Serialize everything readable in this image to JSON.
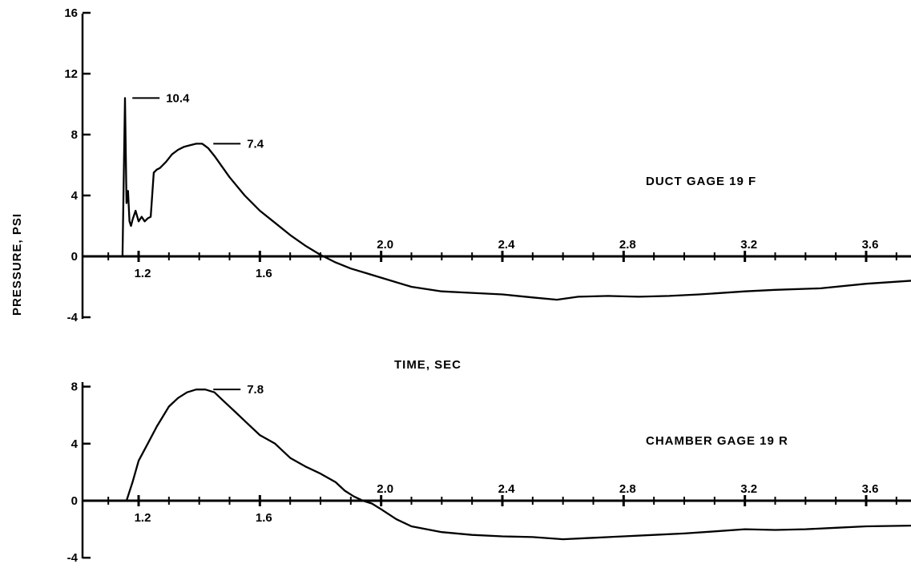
{
  "labels": {
    "ylabel": "PRESSURE, PSI",
    "xlabel": "TIME, SEC"
  },
  "chart_data": [
    {
      "type": "line",
      "panel": "top",
      "gage_label": "DUCT GAGE 19 F",
      "xlim": [
        1.0,
        3.75
      ],
      "ylim": [
        -4,
        16
      ],
      "x_ticks": [
        1.2,
        1.6,
        2.0,
        2.4,
        2.8,
        3.2,
        3.6
      ],
      "x_tick_labels": [
        "1.2",
        "1.6",
        "2.0",
        "2.4",
        "2.8",
        "3.2",
        "3.6"
      ],
      "y_ticks": [
        -4,
        0,
        4,
        8,
        12,
        16
      ],
      "y_tick_labels": [
        "-4",
        "0",
        "4",
        "8",
        "12",
        "16"
      ],
      "annotations": [
        {
          "text": "10.4",
          "x": 1.153,
          "y": 10.4
        },
        {
          "text": "7.4",
          "x": 1.42,
          "y": 7.4
        }
      ],
      "series": [
        {
          "x": [
            1.147,
            1.155,
            1.16,
            1.165,
            1.17,
            1.175,
            1.18,
            1.19,
            1.2,
            1.21,
            1.22,
            1.23,
            1.24,
            1.25,
            1.26,
            1.27,
            1.29,
            1.31,
            1.33,
            1.35,
            1.37,
            1.39,
            1.41,
            1.43,
            1.45,
            1.5,
            1.55,
            1.6,
            1.65,
            1.7,
            1.75,
            1.8,
            1.85,
            1.9,
            1.95,
            2.0,
            2.1,
            2.2,
            2.3,
            2.4,
            2.5,
            2.58,
            2.65,
            2.75,
            2.85,
            2.95,
            3.05,
            3.2,
            3.3,
            3.45,
            3.6,
            3.75
          ],
          "y": [
            0.0,
            10.4,
            3.5,
            4.3,
            2.3,
            2.0,
            2.4,
            3.0,
            2.3,
            2.6,
            2.3,
            2.5,
            2.6,
            5.5,
            5.7,
            5.8,
            6.2,
            6.7,
            7.0,
            7.2,
            7.3,
            7.4,
            7.4,
            7.1,
            6.6,
            5.2,
            4.0,
            3.0,
            2.2,
            1.4,
            0.7,
            0.1,
            -0.4,
            -0.8,
            -1.1,
            -1.4,
            -2.0,
            -2.3,
            -2.4,
            -2.5,
            -2.7,
            -2.85,
            -2.65,
            -2.6,
            -2.65,
            -2.6,
            -2.5,
            -2.3,
            -2.2,
            -2.1,
            -1.8,
            -1.6
          ]
        }
      ]
    },
    {
      "type": "line",
      "panel": "bottom",
      "gage_label": "CHAMBER GAGE 19 R",
      "xlim": [
        1.0,
        3.75
      ],
      "ylim": [
        -4,
        8
      ],
      "x_ticks": [
        1.2,
        1.6,
        2.0,
        2.4,
        2.8,
        3.2,
        3.6
      ],
      "x_tick_labels": [
        "1.2",
        "1.6",
        "2.0",
        "2.4",
        "2.8",
        "3.2",
        "3.6"
      ],
      "y_ticks": [
        -4,
        0,
        4,
        8
      ],
      "y_tick_labels": [
        "-4",
        "0",
        "4",
        "8"
      ],
      "annotations": [
        {
          "text": "7.8",
          "x": 1.42,
          "y": 7.8
        }
      ],
      "series": [
        {
          "x": [
            1.16,
            1.18,
            1.2,
            1.23,
            1.26,
            1.3,
            1.33,
            1.36,
            1.39,
            1.42,
            1.45,
            1.48,
            1.52,
            1.56,
            1.6,
            1.65,
            1.7,
            1.75,
            1.8,
            1.85,
            1.88,
            1.91,
            1.94,
            1.97,
            2.0,
            2.05,
            2.1,
            2.2,
            2.3,
            2.4,
            2.5,
            2.6,
            2.7,
            2.8,
            2.9,
            3.0,
            3.1,
            3.2,
            3.3,
            3.4,
            3.5,
            3.6,
            3.75
          ],
          "y": [
            0.0,
            1.3,
            2.8,
            4.0,
            5.2,
            6.6,
            7.2,
            7.6,
            7.8,
            7.8,
            7.6,
            7.0,
            6.2,
            5.4,
            4.6,
            4.0,
            3.0,
            2.4,
            1.9,
            1.3,
            0.7,
            0.3,
            0.0,
            -0.2,
            -0.6,
            -1.3,
            -1.8,
            -2.2,
            -2.4,
            -2.5,
            -2.55,
            -2.7,
            -2.6,
            -2.5,
            -2.4,
            -2.3,
            -2.15,
            -2.0,
            -2.05,
            -2.0,
            -1.9,
            -1.8,
            -1.75
          ]
        }
      ]
    }
  ]
}
